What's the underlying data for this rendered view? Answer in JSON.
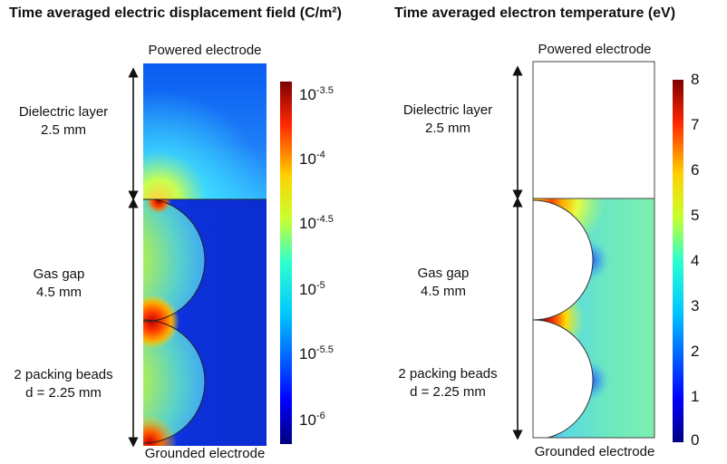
{
  "left_panel": {
    "title": "Time averaged electric displacement field (C/m²)",
    "top_label": "Powered electrode",
    "bottom_label": "Grounded electrode",
    "dielectric": {
      "line1": "Dielectric layer",
      "line2": "2.5 mm"
    },
    "gas_gap": {
      "line1": "Gas gap",
      "line2": "4.5 mm"
    },
    "beads": {
      "line1": "2 packing beads",
      "line2": "d = 2.25 mm"
    },
    "colorbar": {
      "scale": "log",
      "ticks": [
        {
          "base": "10",
          "exp": "-3.5"
        },
        {
          "base": "10",
          "exp": "-4"
        },
        {
          "base": "10",
          "exp": "-4.5"
        },
        {
          "base": "10",
          "exp": "-5"
        },
        {
          "base": "10",
          "exp": "-5.5"
        },
        {
          "base": "10",
          "exp": "-6"
        }
      ]
    }
  },
  "right_panel": {
    "title": "Time averaged electron temperature (eV)",
    "top_label": "Powered electrode",
    "bottom_label": "Grounded electrode",
    "dielectric": {
      "line1": "Dielectric layer",
      "line2": "2.5 mm"
    },
    "gas_gap": {
      "line1": "Gas gap",
      "line2": "4.5 mm"
    },
    "beads": {
      "line1": "2 packing beads",
      "line2": "d = 2.25 mm"
    },
    "colorbar": {
      "ticks": [
        "8",
        "7",
        "6",
        "5",
        "4",
        "3",
        "2",
        "1",
        "0"
      ]
    }
  },
  "colormap": "rainbow (dark blue → cyan → yellow → red → dark red)"
}
